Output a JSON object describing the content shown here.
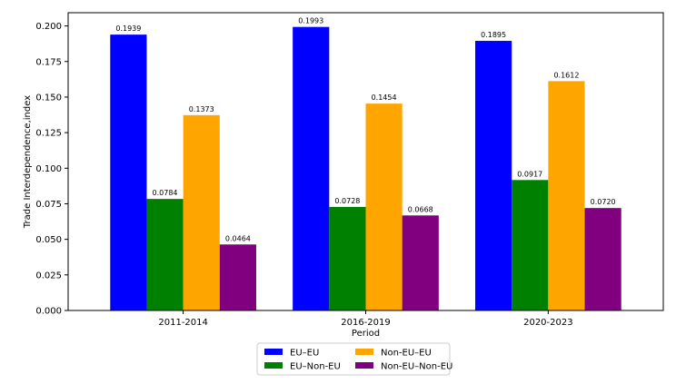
{
  "chart_data": {
    "type": "bar",
    "title": "",
    "xlabel": "Period",
    "ylabel": "Trade Interdependence,index",
    "categories": [
      "2011-2014",
      "2016-2019",
      "2020-2023"
    ],
    "series": [
      {
        "name": "EU–EU",
        "color": "#0000ff",
        "values": [
          0.1939,
          0.1993,
          0.1895
        ],
        "labels": [
          "0.1939",
          "0.1993",
          "0.1895"
        ]
      },
      {
        "name": "EU–Non-EU",
        "color": "#008000",
        "values": [
          0.0784,
          0.0728,
          0.0917
        ],
        "labels": [
          "0.0784",
          "0.0728",
          "0.0917"
        ]
      },
      {
        "name": "Non-EU–EU",
        "color": "#ffa500",
        "values": [
          0.1373,
          0.1454,
          0.1612
        ],
        "labels": [
          "0.1373",
          "0.1454",
          "0.1612"
        ]
      },
      {
        "name": "Non-EU–Non-EU",
        "color": "#800080",
        "values": [
          0.0464,
          0.0668,
          0.072
        ],
        "labels": [
          "0.0464",
          "0.0668",
          "0.0720"
        ]
      }
    ],
    "yticks": [
      "0.000",
      "0.025",
      "0.050",
      "0.075",
      "0.100",
      "0.125",
      "0.150",
      "0.175",
      "0.200"
    ],
    "ylim": [
      0,
      0.2093
    ],
    "grid": false,
    "legend_position": "bottom-center"
  }
}
